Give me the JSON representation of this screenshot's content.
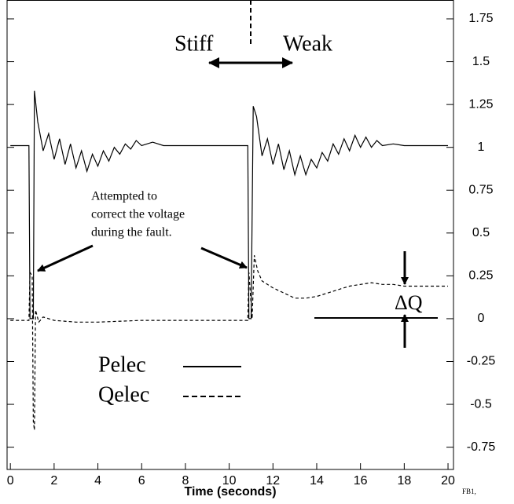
{
  "chart_data": {
    "type": "line",
    "x_label": "Time (seconds)",
    "corner_label": "FB1,",
    "stiff_label": "Stiff",
    "weak_label": "Weak",
    "delta_label": "ΔQ",
    "annotation_lines": [
      "Attempted to",
      "correct the voltage",
      "during the fault."
    ],
    "xlim": [
      -0.15,
      20.25
    ],
    "xticks": [
      0,
      2,
      4,
      6,
      8,
      10,
      12,
      14,
      16,
      18,
      20
    ],
    "ylim": [
      -0.88,
      1.86
    ],
    "yticks": [
      -0.75,
      -0.5,
      -0.25,
      0,
      0.25,
      0.5,
      0.75,
      1,
      1.25,
      1.5,
      1.75
    ],
    "grid": false,
    "series": [
      {
        "name": "Pelec",
        "color": "#000000",
        "dash": false,
        "x": [
          0,
          0.5,
          0.85,
          0.9,
          1.0,
          1.05,
          1.1,
          1.25,
          1.5,
          1.75,
          2.0,
          2.25,
          2.5,
          2.75,
          3.0,
          3.25,
          3.5,
          3.75,
          4.0,
          4.25,
          4.5,
          4.75,
          5.0,
          5.25,
          5.5,
          5.75,
          6.0,
          6.5,
          7,
          8,
          10.85,
          10.9,
          11.0,
          11.1,
          11.25,
          11.5,
          11.75,
          12.0,
          12.25,
          12.5,
          12.75,
          13.0,
          13.25,
          13.5,
          13.75,
          14.0,
          14.25,
          14.5,
          14.75,
          15.0,
          15.25,
          15.5,
          15.75,
          16.0,
          16.25,
          16.5,
          16.75,
          17.0,
          17.5,
          18.0,
          20
        ],
        "values": [
          1.01,
          1.01,
          1.01,
          0.0,
          0.0,
          0.0,
          1.33,
          1.15,
          0.98,
          1.08,
          0.93,
          1.05,
          0.9,
          1.02,
          0.88,
          0.98,
          0.86,
          0.96,
          0.89,
          0.98,
          0.92,
          1.0,
          0.96,
          1.02,
          0.99,
          1.04,
          1.01,
          1.03,
          1.01,
          1.01,
          1.01,
          0.0,
          0.0,
          1.24,
          1.18,
          0.95,
          1.05,
          0.9,
          1.02,
          0.87,
          0.98,
          0.84,
          0.95,
          0.84,
          0.93,
          0.88,
          0.97,
          0.92,
          1.02,
          0.96,
          1.05,
          0.98,
          1.07,
          1.0,
          1.06,
          1.0,
          1.04,
          1.01,
          1.02,
          1.01,
          1.01
        ]
      },
      {
        "name": "Qelec",
        "color": "#000000",
        "dash": true,
        "x": [
          0,
          0.85,
          0.9,
          1.0,
          1.05,
          1.1,
          1.15,
          1.3,
          1.5,
          2,
          3,
          4,
          6,
          8,
          10.85,
          10.9,
          11.05,
          11.15,
          11.3,
          11.5,
          12,
          12.5,
          13,
          13.5,
          14,
          14.5,
          15,
          15.5,
          16,
          16.5,
          17,
          17.5,
          18,
          19,
          20
        ],
        "values": [
          -0.01,
          -0.01,
          0.27,
          0.25,
          -0.6,
          -0.65,
          0.05,
          -0.02,
          0.01,
          -0.01,
          -0.02,
          -0.02,
          -0.01,
          -0.01,
          -0.01,
          0.27,
          0.0,
          0.37,
          0.28,
          0.22,
          0.18,
          0.15,
          0.12,
          0.12,
          0.13,
          0.15,
          0.17,
          0.19,
          0.2,
          0.21,
          0.2,
          0.2,
          0.19,
          0.19,
          0.19
        ]
      }
    ]
  }
}
